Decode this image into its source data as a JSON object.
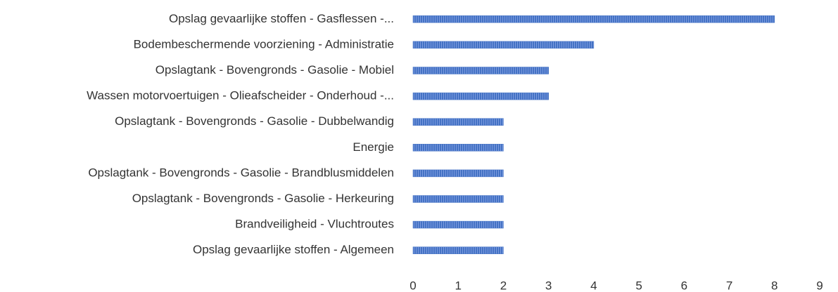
{
  "chart_data": {
    "type": "bar",
    "orientation": "horizontal",
    "categories": [
      "Opslag gevaarlijke stoffen - Gasflessen -...",
      "Bodembeschermende voorziening - Administratie",
      "Opslagtank - Bovengronds - Gasolie - Mobiel",
      "Wassen motorvoertuigen - Olieafscheider - Onderhoud -...",
      "Opslagtank - Bovengronds - Gasolie - Dubbelwandig",
      "Energie",
      "Opslagtank - Bovengronds - Gasolie - Brandblusmiddelen",
      "Opslagtank - Bovengronds - Gasolie - Herkeuring",
      "Brandveiligheid - Vluchtroutes",
      "Opslag gevaarlijke stoffen - Algemeen"
    ],
    "values": [
      8,
      4,
      3,
      3,
      2,
      2,
      2,
      2,
      2,
      2
    ],
    "color": "#4472c4",
    "xlim": [
      0,
      9
    ],
    "xticks": [
      0,
      1,
      2,
      3,
      4,
      5,
      6,
      7,
      8,
      9
    ],
    "grid": false
  }
}
